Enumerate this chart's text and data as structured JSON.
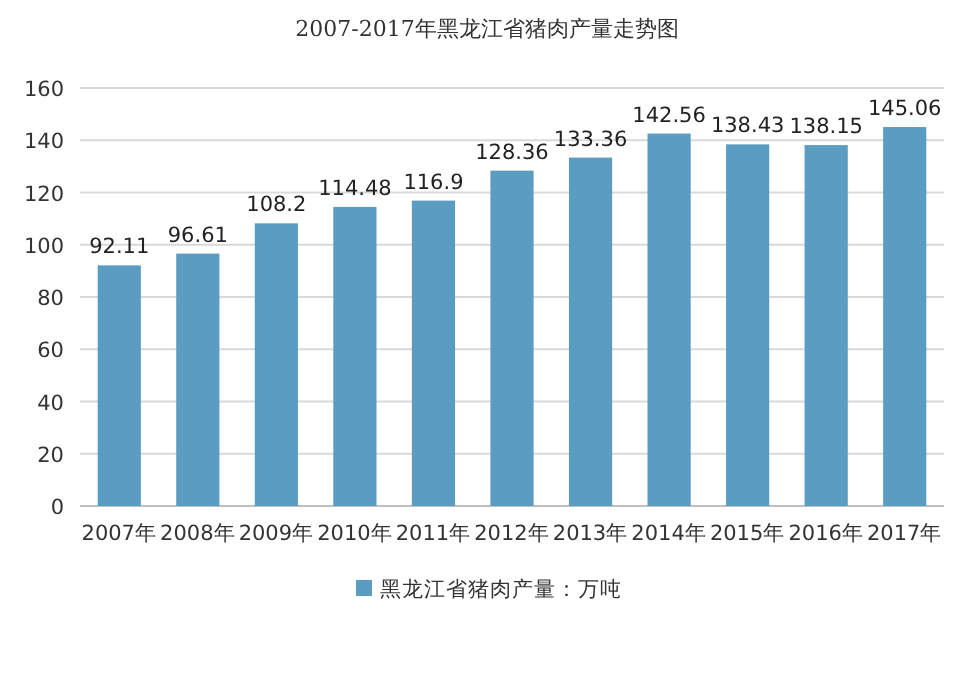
{
  "chart_data": {
    "type": "bar",
    "title": "2007-2017年黑龙江省猪肉产量走势图",
    "categories": [
      "2007年",
      "2008年",
      "2009年",
      "2010年",
      "2011年",
      "2012年",
      "2013年",
      "2014年",
      "2015年",
      "2016年",
      "2017年"
    ],
    "series": [
      {
        "name": "黑龙江省猪肉产量：万吨",
        "color": "#5b9dc2",
        "values": [
          92.11,
          96.61,
          108.2,
          114.48,
          116.9,
          128.36,
          133.36,
          142.56,
          138.43,
          138.15,
          145.06
        ]
      }
    ],
    "ylim": [
      0,
      160
    ],
    "yticks": [
      0,
      20,
      40,
      60,
      80,
      100,
      120,
      140,
      160
    ],
    "grid": "y",
    "legend": "bottom",
    "data_labels": true
  }
}
